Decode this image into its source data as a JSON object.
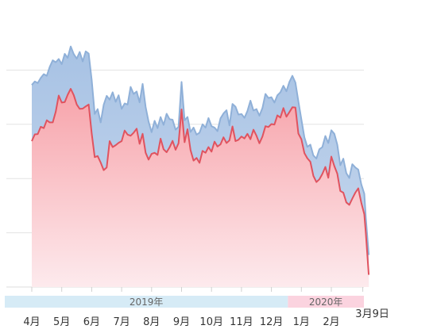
{
  "chart_data": {
    "type": "area",
    "title": "",
    "xlabel": "",
    "ylabel": "",
    "grid": true,
    "ylim": [
      0,
      100
    ],
    "month_labels": [
      "4月",
      "5月",
      "6月",
      "7月",
      "8月",
      "9月",
      "10月",
      "11月",
      "12月",
      "1月",
      "2月",
      "3月9日"
    ],
    "year_bands": [
      {
        "label": "2019年",
        "color": "#d6ebf6",
        "start_month": 0,
        "end_month": 8.55
      },
      {
        "label": "2020年",
        "color": "#fbd3df",
        "start_month": 8.55,
        "end_month": 11.3
      }
    ],
    "x": [
      0,
      0.1,
      0.2,
      0.3,
      0.4,
      0.5,
      0.6,
      0.7,
      0.8,
      0.9,
      1.0,
      1.1,
      1.2,
      1.3,
      1.4,
      1.5,
      1.6,
      1.7,
      1.8,
      1.9,
      2.0,
      2.1,
      2.2,
      2.3,
      2.4,
      2.5,
      2.6,
      2.7,
      2.8,
      2.9,
      3.0,
      3.1,
      3.2,
      3.3,
      3.4,
      3.5,
      3.6,
      3.7,
      3.8,
      3.9,
      4.0,
      4.1,
      4.2,
      4.3,
      4.4,
      4.5,
      4.6,
      4.7,
      4.8,
      4.9,
      5.0,
      5.1,
      5.2,
      5.3,
      5.4,
      5.5,
      5.6,
      5.7,
      5.8,
      5.9,
      6.0,
      6.1,
      6.2,
      6.3,
      6.4,
      6.5,
      6.6,
      6.7,
      6.8,
      6.9,
      7.0,
      7.1,
      7.2,
      7.3,
      7.4,
      7.5,
      7.6,
      7.7,
      7.8,
      7.9,
      8.0,
      8.1,
      8.2,
      8.3,
      8.4,
      8.5,
      8.6,
      8.7,
      8.8,
      8.9,
      9.0,
      9.1,
      9.2,
      9.3,
      9.4,
      9.5,
      9.6,
      9.7,
      9.8,
      9.9,
      10.0,
      10.1,
      10.2,
      10.3,
      10.4,
      10.5,
      10.6,
      10.7,
      10.8,
      10.9,
      11.0,
      11.1,
      11.15,
      11.25
    ],
    "series": [
      {
        "color": "#8fb0d8",
        "fill_top": "#a7c2e4",
        "fill_bottom": "#c9d9ee",
        "values": [
          74.5,
          75.8,
          75.2,
          77.1,
          78.5,
          77.9,
          81.2,
          83.6,
          82.9,
          84.1,
          82.2,
          86.0,
          84.5,
          88.7,
          85.9,
          84.2,
          86.7,
          83.2,
          86.9,
          86.1,
          76.4,
          63.8,
          65.6,
          60.7,
          67.2,
          70.5,
          69.1,
          71.8,
          68.3,
          70.7,
          65.7,
          67.7,
          67.3,
          73.8,
          71.2,
          72.1,
          68.1,
          74.9,
          66.4,
          61.0,
          57.1,
          61.3,
          58.6,
          62.7,
          59.8,
          63.9,
          61.9,
          61.7,
          58.0,
          59.1,
          75.6,
          61.5,
          62.7,
          57.2,
          58.8,
          56.2,
          56.9,
          60.0,
          58.8,
          62.3,
          59.3,
          58.8,
          57.5,
          62.2,
          64.0,
          65.2,
          59.6,
          67.5,
          66.5,
          63.6,
          63.8,
          62.4,
          64.9,
          68.7,
          65.1,
          65.6,
          63.2,
          66.0,
          71.2,
          69.7,
          70.0,
          68.0,
          70.7,
          71.8,
          74.2,
          72.2,
          75.6,
          77.9,
          75.4,
          68.5,
          61.8,
          55.2,
          51.7,
          52.5,
          48.5,
          47.4,
          50.8,
          51.6,
          55.7,
          53.1,
          57.8,
          56.5,
          52.5,
          44.9,
          47.3,
          42.0,
          40.2,
          45.3,
          44.1,
          43.3,
          37.9,
          34.4,
          25.6,
          11.8
        ]
      },
      {
        "color": "#e0535f",
        "fill_top": "#f7a3aa",
        "fill_bottom": "#fdeaed",
        "values": [
          53.8,
          56.3,
          56.4,
          59.1,
          58.6,
          61.5,
          60.7,
          60.7,
          64.7,
          70.6,
          68.0,
          68.2,
          70.9,
          73.1,
          70.8,
          67.3,
          65.7,
          65.8,
          66.6,
          67.3,
          56.7,
          47.9,
          48.3,
          45.9,
          43.1,
          44.1,
          53.8,
          51.6,
          52.3,
          53.2,
          53.8,
          57.7,
          56.2,
          55.8,
          56.9,
          58.4,
          52.8,
          56.5,
          49.5,
          47.0,
          49.1,
          49.5,
          48.7,
          54.7,
          50.8,
          49.7,
          51.5,
          53.9,
          50.6,
          53.0,
          65.5,
          53.4,
          58.2,
          50.5,
          46.6,
          47.6,
          45.8,
          50.2,
          49.5,
          51.6,
          49.9,
          53.6,
          51.8,
          52.6,
          55.2,
          53.1,
          54.1,
          59.2,
          53.8,
          54.3,
          55.5,
          54.8,
          56.5,
          54.5,
          58.0,
          55.8,
          53.0,
          55.5,
          59.3,
          59.0,
          60.1,
          59.9,
          63.3,
          62.5,
          66.0,
          62.8,
          64.5,
          66.3,
          66.2,
          56.6,
          54.5,
          49.4,
          47.5,
          46.2,
          41.0,
          38.7,
          39.7,
          41.7,
          44.3,
          40.3,
          48.1,
          44.6,
          41.8,
          35.4,
          34.8,
          31.2,
          30.3,
          32.6,
          34.8,
          36.4,
          31.1,
          26.8,
          19.9,
          4.5
        ]
      }
    ]
  }
}
